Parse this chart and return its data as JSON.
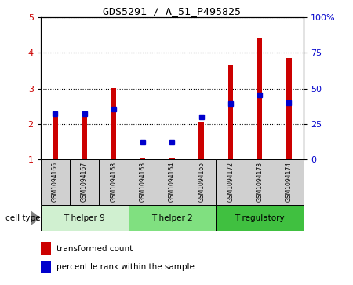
{
  "title": "GDS5291 / A_51_P495825",
  "samples": [
    "GSM1094166",
    "GSM1094167",
    "GSM1094168",
    "GSM1094163",
    "GSM1094164",
    "GSM1094165",
    "GSM1094172",
    "GSM1094173",
    "GSM1094174"
  ],
  "red_values": [
    2.2,
    2.2,
    3.02,
    1.05,
    1.05,
    2.05,
    3.65,
    4.4,
    3.85
  ],
  "blue_values": [
    2.28,
    2.28,
    2.42,
    1.5,
    1.5,
    2.2,
    2.58,
    2.82,
    2.6
  ],
  "ylim_left": [
    1,
    5
  ],
  "ylim_right": [
    0,
    100
  ],
  "yticks_left": [
    1,
    2,
    3,
    4,
    5
  ],
  "yticks_right": [
    0,
    25,
    50,
    75,
    100
  ],
  "ytick_labels_right": [
    "0",
    "25",
    "50",
    "75",
    "100%"
  ],
  "groups": [
    {
      "label": "T helper 9",
      "start": 0,
      "end": 3,
      "color": "#d0f0d0"
    },
    {
      "label": "T helper 2",
      "start": 3,
      "end": 6,
      "color": "#80e080"
    },
    {
      "label": "T regulatory",
      "start": 6,
      "end": 9,
      "color": "#40c040"
    }
  ],
  "cell_type_label": "cell type",
  "legend_red": "transformed count",
  "legend_blue": "percentile rank within the sample",
  "bar_color": "#cc0000",
  "dot_color": "#0000cc",
  "grid_color": "#000000",
  "bg_color": "#ffffff",
  "tick_label_color_left": "#cc0000",
  "tick_label_color_right": "#0000cc",
  "bar_width": 0.18
}
